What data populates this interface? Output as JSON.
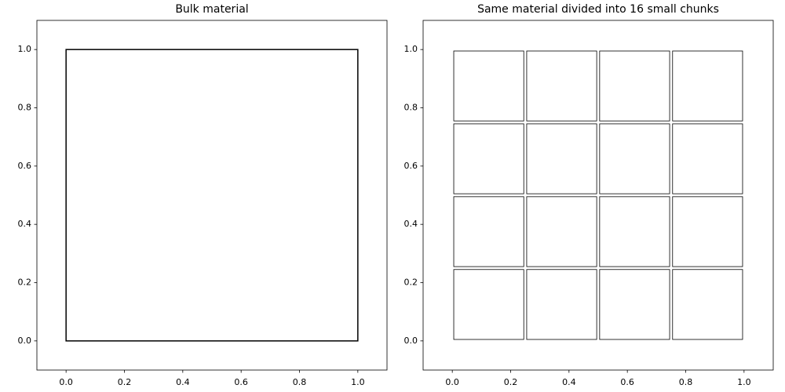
{
  "chart_data": [
    {
      "type": "rectangles",
      "title": "Bulk material",
      "color": "#000000",
      "rectangles": [
        {
          "x": 0,
          "y": 0,
          "width": 1,
          "height": 1
        }
      ],
      "xlim": [
        -0.1,
        1.1
      ],
      "ylim": [
        -0.1,
        1.1
      ],
      "xticks": [
        {
          "value": 0,
          "label": "0.0"
        },
        {
          "value": 0.2,
          "label": "0.2"
        },
        {
          "value": 0.4,
          "label": "0.4"
        },
        {
          "value": 0.6,
          "label": "0.6"
        },
        {
          "value": 0.8,
          "label": "0.8"
        },
        {
          "value": 1,
          "label": "1.0"
        }
      ],
      "yticks": [
        {
          "value": 0,
          "label": "0.0"
        },
        {
          "value": 0.2,
          "label": "0.2"
        },
        {
          "value": 0.4,
          "label": "0.4"
        },
        {
          "value": 0.6,
          "label": "0.6"
        },
        {
          "value": 0.8,
          "label": "0.8"
        },
        {
          "value": 1,
          "label": "1.0"
        }
      ]
    },
    {
      "type": "rectangles",
      "title": "Same material divided into 16 small chunks",
      "color": "#000000",
      "rectangles": [
        {
          "x": 0.005,
          "y": 0.005,
          "width": 0.24,
          "height": 0.24
        },
        {
          "x": 0.255,
          "y": 0.005,
          "width": 0.24,
          "height": 0.24
        },
        {
          "x": 0.505,
          "y": 0.005,
          "width": 0.24,
          "height": 0.24
        },
        {
          "x": 0.755,
          "y": 0.005,
          "width": 0.24,
          "height": 0.24
        },
        {
          "x": 0.005,
          "y": 0.255,
          "width": 0.24,
          "height": 0.24
        },
        {
          "x": 0.255,
          "y": 0.255,
          "width": 0.24,
          "height": 0.24
        },
        {
          "x": 0.505,
          "y": 0.255,
          "width": 0.24,
          "height": 0.24
        },
        {
          "x": 0.755,
          "y": 0.255,
          "width": 0.24,
          "height": 0.24
        },
        {
          "x": 0.005,
          "y": 0.505,
          "width": 0.24,
          "height": 0.24
        },
        {
          "x": 0.255,
          "y": 0.505,
          "width": 0.24,
          "height": 0.24
        },
        {
          "x": 0.505,
          "y": 0.505,
          "width": 0.24,
          "height": 0.24
        },
        {
          "x": 0.755,
          "y": 0.505,
          "width": 0.24,
          "height": 0.24
        },
        {
          "x": 0.005,
          "y": 0.755,
          "width": 0.24,
          "height": 0.24
        },
        {
          "x": 0.255,
          "y": 0.755,
          "width": 0.24,
          "height": 0.24
        },
        {
          "x": 0.505,
          "y": 0.755,
          "width": 0.24,
          "height": 0.24
        },
        {
          "x": 0.755,
          "y": 0.755,
          "width": 0.24,
          "height": 0.24
        }
      ],
      "xlim": [
        -0.1,
        1.1
      ],
      "ylim": [
        -0.1,
        1.1
      ],
      "xticks": [
        {
          "value": 0,
          "label": "0.0"
        },
        {
          "value": 0.2,
          "label": "0.2"
        },
        {
          "value": 0.4,
          "label": "0.4"
        },
        {
          "value": 0.6,
          "label": "0.6"
        },
        {
          "value": 0.8,
          "label": "0.8"
        },
        {
          "value": 1,
          "label": "1.0"
        }
      ],
      "yticks": [
        {
          "value": 0,
          "label": "0.0"
        },
        {
          "value": 0.2,
          "label": "0.2"
        },
        {
          "value": 0.4,
          "label": "0.4"
        },
        {
          "value": 0.6,
          "label": "0.6"
        },
        {
          "value": 0.8,
          "label": "0.8"
        },
        {
          "value": 1,
          "label": "1.0"
        }
      ]
    }
  ]
}
